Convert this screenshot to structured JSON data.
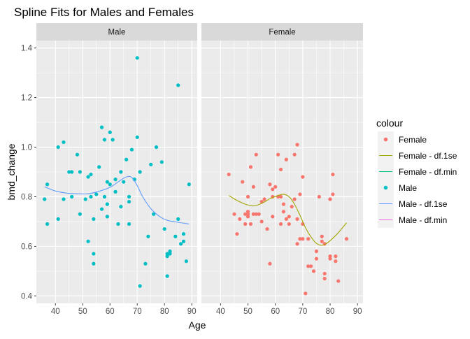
{
  "chart_data": {
    "type": "scatter",
    "title": "Spline Fits for Males and Females",
    "xlabel": "Age",
    "ylabel": "bmd_change",
    "xlim": [
      33,
      92
    ],
    "ylim": [
      0.37,
      1.43
    ],
    "x_ticks": [
      40,
      50,
      60,
      70,
      80,
      90
    ],
    "y_ticks": [
      0.4,
      0.6,
      0.8,
      1.0,
      1.2,
      1.4
    ],
    "y_tick_labels": [
      "0.4",
      "0.6",
      "0.8",
      "1.0",
      "1.2",
      "1.4"
    ],
    "grid": true,
    "legend_position": "right",
    "legend_title": "colour",
    "colors": {
      "Female": "#F8766D",
      "Female - df.1se": "#A3A500",
      "Female - df.min": "#00BF7D",
      "Male": "#00BFC4",
      "Male - df.1se": "#619CFF",
      "Male - df.min": "#F564E3"
    },
    "legend": [
      {
        "label": "Female",
        "kind": "point"
      },
      {
        "label": "Female - df.1se",
        "kind": "line"
      },
      {
        "label": "Female - df.min",
        "kind": "line"
      },
      {
        "label": "Male",
        "kind": "point"
      },
      {
        "label": "Male - df.1se",
        "kind": "line"
      },
      {
        "label": "Male - df.min",
        "kind": "line"
      }
    ],
    "panels": [
      {
        "strip": "Male",
        "points_series": "Male",
        "curve_series": "Male - df.1se",
        "points": [
          [
            36,
            0.79
          ],
          [
            37,
            0.69
          ],
          [
            37,
            0.85
          ],
          [
            41,
            0.71
          ],
          [
            41,
            1.0
          ],
          [
            43,
            1.02
          ],
          [
            43,
            0.79
          ],
          [
            45,
            0.9
          ],
          [
            46,
            0.9
          ],
          [
            46,
            0.8
          ],
          [
            48,
            0.97
          ],
          [
            49,
            0.73
          ],
          [
            49,
            0.9
          ],
          [
            51,
            0.79
          ],
          [
            52,
            0.62
          ],
          [
            52,
            0.88
          ],
          [
            53,
            0.89
          ],
          [
            53,
            0.8
          ],
          [
            54,
            0.71
          ],
          [
            54,
            0.57
          ],
          [
            54,
            0.53
          ],
          [
            55,
            0.81
          ],
          [
            56,
            0.92
          ],
          [
            57,
            0.75
          ],
          [
            57,
            1.08
          ],
          [
            58,
            1.03
          ],
          [
            58,
            0.8
          ],
          [
            59,
            0.77
          ],
          [
            59,
            0.86
          ],
          [
            59,
            0.72
          ],
          [
            60,
            0.85
          ],
          [
            60,
            1.06
          ],
          [
            61,
            1.03
          ],
          [
            62,
            0.82
          ],
          [
            62,
            0.87
          ],
          [
            63,
            0.69
          ],
          [
            64,
            0.9
          ],
          [
            64,
            0.76
          ],
          [
            65,
            0.86
          ],
          [
            66,
            0.95
          ],
          [
            67,
            0.69
          ],
          [
            67,
            0.8
          ],
          [
            67,
            0.78
          ],
          [
            68,
            0.99
          ],
          [
            69,
            0.87
          ],
          [
            70,
            1.36
          ],
          [
            70,
            1.04
          ],
          [
            71,
            0.9
          ],
          [
            71,
            0.44
          ],
          [
            73,
            0.53
          ],
          [
            74,
            0.64
          ],
          [
            75,
            0.93
          ],
          [
            76,
            0.73
          ],
          [
            77,
            1.0
          ],
          [
            79,
            0.94
          ],
          [
            80,
            0.67
          ],
          [
            81,
            0.48
          ],
          [
            81,
            0.57
          ],
          [
            81,
            0.56
          ],
          [
            82,
            0.58
          ],
          [
            82,
            0.57
          ],
          [
            84,
            0.64
          ],
          [
            85,
            1.25
          ],
          [
            85,
            0.71
          ],
          [
            86,
            0.61
          ],
          [
            87,
            0.65
          ],
          [
            87,
            0.62
          ],
          [
            88,
            0.54
          ],
          [
            89,
            0.85
          ]
        ],
        "curve": [
          [
            36,
            0.84
          ],
          [
            40,
            0.823
          ],
          [
            44,
            0.815
          ],
          [
            48,
            0.812
          ],
          [
            52,
            0.812
          ],
          [
            56,
            0.822
          ],
          [
            60,
            0.838
          ],
          [
            63,
            0.86
          ],
          [
            66,
            0.88
          ],
          [
            68,
            0.878
          ],
          [
            70,
            0.845
          ],
          [
            72,
            0.8
          ],
          [
            75,
            0.752
          ],
          [
            78,
            0.722
          ],
          [
            81,
            0.705
          ],
          [
            85,
            0.697
          ],
          [
            89,
            0.69
          ]
        ]
      },
      {
        "strip": "Female",
        "points_series": "Female",
        "curve_series": "Female - df.1se",
        "points": [
          [
            43,
            0.89
          ],
          [
            45,
            0.73
          ],
          [
            46,
            0.65
          ],
          [
            47,
            0.71
          ],
          [
            48,
            0.86
          ],
          [
            49,
            0.73
          ],
          [
            49,
            0.69
          ],
          [
            50,
            0.8
          ],
          [
            50,
            0.73
          ],
          [
            50,
            0.74
          ],
          [
            50,
            0.72
          ],
          [
            51,
            0.92
          ],
          [
            51,
            0.69
          ],
          [
            52,
            0.84
          ],
          [
            52,
            0.73
          ],
          [
            53,
            0.97
          ],
          [
            53,
            0.73
          ],
          [
            54,
            0.73
          ],
          [
            55,
            0.78
          ],
          [
            55,
            0.7
          ],
          [
            56,
            0.79
          ],
          [
            57,
            0.67
          ],
          [
            58,
            0.53
          ],
          [
            58,
            0.85
          ],
          [
            59,
            0.8
          ],
          [
            59,
            0.83
          ],
          [
            59,
            0.72
          ],
          [
            60,
            0.84
          ],
          [
            61,
            0.8
          ],
          [
            61,
            0.97
          ],
          [
            62,
            0.8
          ],
          [
            62,
            0.91
          ],
          [
            62,
            0.69
          ],
          [
            63,
            0.77
          ],
          [
            63,
            0.74
          ],
          [
            64,
            0.95
          ],
          [
            64,
            0.71
          ],
          [
            65,
            0.72
          ],
          [
            65,
            0.69
          ],
          [
            66,
            0.76
          ],
          [
            67,
            0.79
          ],
          [
            67,
            0.97
          ],
          [
            68,
            1.01
          ],
          [
            68,
            0.61
          ],
          [
            68,
            0.71
          ],
          [
            69,
            0.81
          ],
          [
            69,
            0.63
          ],
          [
            70,
            0.88
          ],
          [
            70,
            0.69
          ],
          [
            70,
            0.63
          ],
          [
            71,
            0.41
          ],
          [
            72,
            0.52
          ],
          [
            72,
            0.63
          ],
          [
            73,
            0.52
          ],
          [
            74,
            0.5
          ],
          [
            75,
            0.58
          ],
          [
            75,
            0.55
          ],
          [
            76,
            0.8
          ],
          [
            77,
            0.62
          ],
          [
            77,
            0.64
          ],
          [
            78,
            0.61
          ],
          [
            78,
            0.49
          ],
          [
            78,
            0.47
          ],
          [
            80,
            0.79
          ],
          [
            80,
            0.55
          ],
          [
            80,
            0.56
          ],
          [
            81,
            0.89
          ],
          [
            81,
            0.81
          ],
          [
            82,
            0.54
          ],
          [
            82,
            0.56
          ],
          [
            83,
            0.46
          ],
          [
            86,
            0.63
          ]
        ],
        "curve": [
          [
            43,
            0.805
          ],
          [
            46,
            0.785
          ],
          [
            49,
            0.77
          ],
          [
            52,
            0.763
          ],
          [
            55,
            0.773
          ],
          [
            58,
            0.792
          ],
          [
            61,
            0.805
          ],
          [
            63,
            0.81
          ],
          [
            65,
            0.8
          ],
          [
            67,
            0.77
          ],
          [
            69,
            0.725
          ],
          [
            71,
            0.675
          ],
          [
            73,
            0.638
          ],
          [
            75,
            0.612
          ],
          [
            77,
            0.604
          ],
          [
            79,
            0.614
          ],
          [
            81,
            0.633
          ],
          [
            83,
            0.655
          ],
          [
            86,
            0.695
          ]
        ]
      }
    ]
  }
}
